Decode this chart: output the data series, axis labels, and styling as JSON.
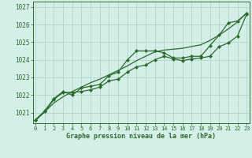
{
  "title": "Graphe pression niveau de la mer (hPa)",
  "background_color": "#d4eee8",
  "plot_bg_color": "#d4eee8",
  "grid_color": "#b8d8cc",
  "line_color": "#2d6a2d",
  "xlim": [
    -0.3,
    23.3
  ],
  "ylim": [
    1020.4,
    1027.3
  ],
  "yticks": [
    1021,
    1022,
    1023,
    1024,
    1025,
    1026,
    1027
  ],
  "xticks": [
    0,
    1,
    2,
    3,
    4,
    5,
    6,
    7,
    8,
    9,
    10,
    11,
    12,
    13,
    14,
    15,
    16,
    17,
    18,
    19,
    20,
    21,
    22,
    23
  ],
  "smooth_line": [
    1020.55,
    1021.05,
    1021.55,
    1021.9,
    1022.2,
    1022.45,
    1022.7,
    1022.9,
    1023.15,
    1023.4,
    1023.65,
    1023.95,
    1024.2,
    1024.45,
    1024.55,
    1024.6,
    1024.65,
    1024.75,
    1024.85,
    1025.1,
    1025.4,
    1025.75,
    1026.15,
    1026.65
  ],
  "series_with_markers": [
    [
      1020.6,
      1021.1,
      1021.8,
      1022.2,
      1022.0,
      1022.4,
      1022.5,
      1022.6,
      1023.1,
      1023.3,
      1024.0,
      1024.5,
      1024.5,
      1024.5,
      1024.4,
      1024.1,
      1024.1,
      1024.2,
      1024.2,
      1024.8,
      1025.4,
      1026.1,
      1026.2,
      1026.65
    ],
    [
      1020.6,
      1021.05,
      1021.75,
      1022.15,
      1022.15,
      1022.2,
      1022.3,
      1022.45,
      1022.8,
      1022.9,
      1023.3,
      1023.6,
      1023.7,
      1024.0,
      1024.2,
      1024.05,
      1023.95,
      1024.05,
      1024.1,
      1024.2,
      1024.75,
      1024.95,
      1025.35,
      1026.6
    ]
  ]
}
